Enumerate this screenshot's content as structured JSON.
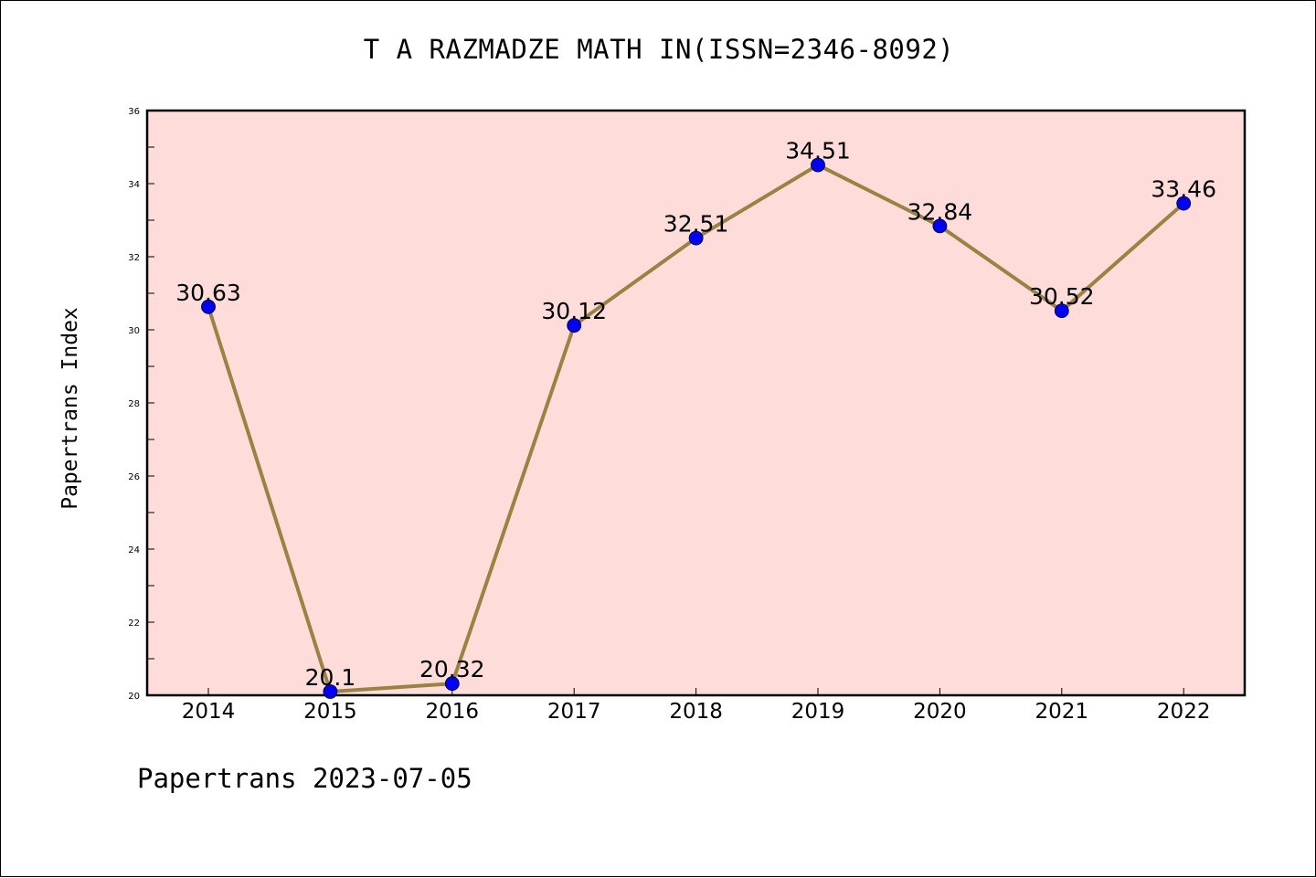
{
  "colors": {
    "plot_background": "#fddcd9",
    "line": "#9a8340",
    "marker": "#0000ff",
    "axis": "#000000"
  },
  "footer": {
    "text": "Papertrans 2023-07-05"
  },
  "chart_data": {
    "type": "line",
    "title": "T A RAZMADZE MATH IN(ISSN=2346-8092)",
    "xlabel": "",
    "ylabel": "Papertrans Index",
    "categories": [
      "2014",
      "2015",
      "2016",
      "2017",
      "2018",
      "2019",
      "2020",
      "2021",
      "2022"
    ],
    "series": [
      {
        "values": [
          30.63,
          20.1,
          20.32,
          30.12,
          32.51,
          34.51,
          32.84,
          30.52,
          33.46
        ],
        "data_labels": [
          "30.63",
          "20.1",
          "20.32",
          "30.12",
          "32.51",
          "34.51",
          "32.84",
          "30.52",
          "33.46"
        ]
      }
    ],
    "ylim": [
      20,
      36
    ],
    "yticks": [
      20,
      22,
      24,
      26,
      28,
      30,
      32,
      34,
      36
    ],
    "grid": false,
    "legend": "none"
  }
}
